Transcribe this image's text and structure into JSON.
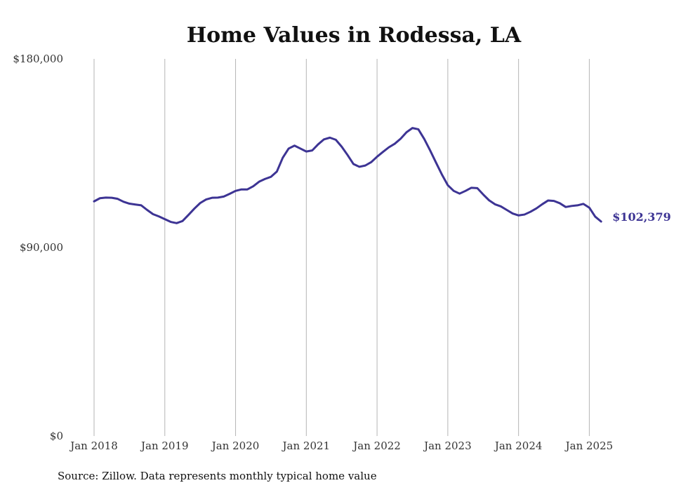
{
  "chart_data": {
    "type": "line",
    "title": "Home Values in Rodessa, LA",
    "xlabel": "",
    "ylabel": "",
    "ylim": [
      0,
      180000
    ],
    "y_ticks": [
      "$0",
      "$90,000",
      "$180,000"
    ],
    "y_tick_values": [
      0,
      90000,
      180000
    ],
    "x_ticks": [
      "Jan 2018",
      "Jan 2019",
      "Jan 2020",
      "Jan 2021",
      "Jan 2022",
      "Jan 2023",
      "Jan 2024",
      "Jan 2025"
    ],
    "x_start": "2018-01",
    "x_end": "2025-05",
    "grid": "vertical",
    "legend": "none",
    "line_color": "#3d3494",
    "end_label": "$102,379",
    "series": [
      {
        "values": [
          112000,
          113500,
          113800,
          113700,
          113200,
          111800,
          110900,
          110500,
          110100,
          107900,
          105900,
          104800,
          103500,
          102200,
          101600,
          102600,
          105500,
          108500,
          111200,
          112900,
          113700,
          113800,
          114300,
          115600,
          117000,
          117700,
          117700,
          119200,
          121400,
          122700,
          123700,
          126200,
          132800,
          137200,
          138600,
          137200,
          135800,
          136300,
          139200,
          141600,
          142400,
          141400,
          138100,
          134100,
          129800,
          128500,
          129100,
          130700,
          133300,
          135600,
          137800,
          139500,
          141900,
          145000,
          147000,
          146400,
          141800,
          136300,
          130500,
          124800,
          119700,
          117000,
          115700,
          117000,
          118500,
          118300,
          115300,
          112500,
          110600,
          109600,
          107900,
          106200,
          105300,
          105700,
          107000,
          108600,
          110600,
          112400,
          112200,
          111100,
          109300,
          109800,
          110100,
          110800,
          109000,
          104700,
          102379
        ]
      }
    ],
    "source": "Source: Zillow. Data represents monthly typical home value"
  }
}
